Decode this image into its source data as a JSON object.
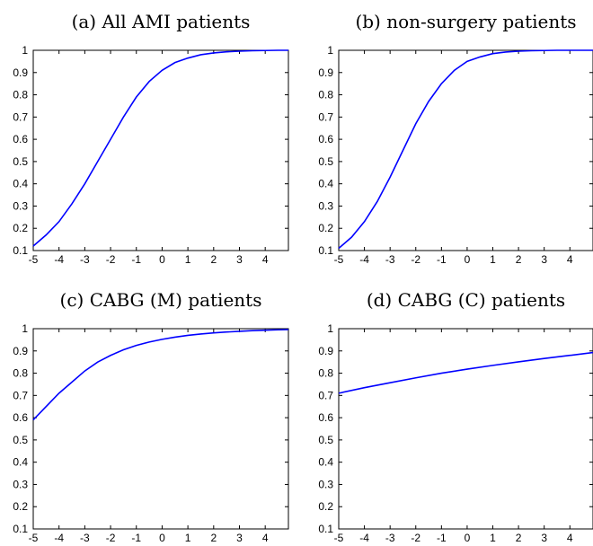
{
  "chart_data": [
    {
      "type": "line",
      "title": "(a) All AMI patients",
      "xlabel": "",
      "ylabel": "",
      "xlim": [
        -5,
        4.9
      ],
      "ylim": [
        0.1,
        1
      ],
      "xticks": [
        -5,
        -4,
        -3,
        -2,
        -1,
        0,
        1,
        2,
        3,
        4
      ],
      "yticks": [
        0.1,
        0.2,
        0.3,
        0.4,
        0.5,
        0.6,
        0.7,
        0.8,
        0.9,
        1
      ],
      "grid": false,
      "color": "#0000ff",
      "series": [
        {
          "x": [
            -5,
            -4.5,
            -4,
            -3.5,
            -3,
            -2.5,
            -2,
            -1.5,
            -1,
            -0.5,
            0,
            0.5,
            1,
            1.5,
            2,
            2.5,
            3,
            3.5,
            4,
            4.5,
            4.9
          ],
          "y": [
            0.12,
            0.17,
            0.23,
            0.31,
            0.4,
            0.5,
            0.6,
            0.7,
            0.79,
            0.86,
            0.91,
            0.945,
            0.965,
            0.98,
            0.988,
            0.993,
            0.996,
            0.998,
            0.999,
            1.0,
            1.0
          ]
        }
      ]
    },
    {
      "type": "line",
      "title": "(b) non-surgery patients",
      "xlabel": "",
      "ylabel": "",
      "xlim": [
        -5,
        4.9
      ],
      "ylim": [
        0.1,
        1
      ],
      "xticks": [
        -5,
        -4,
        -3,
        -2,
        -1,
        0,
        1,
        2,
        3,
        4
      ],
      "yticks": [
        0.1,
        0.2,
        0.3,
        0.4,
        0.5,
        0.6,
        0.7,
        0.8,
        0.9,
        1
      ],
      "grid": false,
      "color": "#0000ff",
      "series": [
        {
          "x": [
            -5,
            -4.5,
            -4,
            -3.5,
            -3,
            -2.5,
            -2,
            -1.5,
            -1,
            -0.5,
            0,
            0.5,
            1,
            1.5,
            2,
            2.5,
            3,
            3.5,
            4,
            4.5,
            4.9
          ],
          "y": [
            0.11,
            0.16,
            0.23,
            0.32,
            0.43,
            0.55,
            0.67,
            0.77,
            0.85,
            0.91,
            0.95,
            0.97,
            0.985,
            0.992,
            0.996,
            0.998,
            0.999,
            1.0,
            1.0,
            1.0,
            1.0
          ]
        }
      ]
    },
    {
      "type": "line",
      "title": "(c) CABG (M) patients",
      "xlabel": "",
      "ylabel": "",
      "xlim": [
        -5,
        4.9
      ],
      "ylim": [
        0.1,
        1
      ],
      "xticks": [
        -5,
        -4,
        -3,
        -2,
        -1,
        0,
        1,
        2,
        3,
        4
      ],
      "yticks": [
        0.1,
        0.2,
        0.3,
        0.4,
        0.5,
        0.6,
        0.7,
        0.8,
        0.9,
        1
      ],
      "grid": false,
      "color": "#0000ff",
      "series": [
        {
          "x": [
            -5,
            -4.5,
            -4,
            -3.5,
            -3,
            -2.5,
            -2,
            -1.5,
            -1,
            -0.5,
            0,
            0.5,
            1,
            1.5,
            2,
            2.5,
            3,
            3.5,
            4,
            4.5,
            4.9
          ],
          "y": [
            0.59,
            0.65,
            0.71,
            0.76,
            0.81,
            0.85,
            0.88,
            0.905,
            0.925,
            0.94,
            0.952,
            0.962,
            0.97,
            0.976,
            0.981,
            0.985,
            0.988,
            0.991,
            0.993,
            0.995,
            0.996
          ]
        }
      ]
    },
    {
      "type": "line",
      "title": "(d) CABG (C) patients",
      "xlabel": "",
      "ylabel": "",
      "xlim": [
        -5,
        4.9
      ],
      "ylim": [
        0.1,
        1
      ],
      "xticks": [
        -5,
        -4,
        -3,
        -2,
        -1,
        0,
        1,
        2,
        3,
        4
      ],
      "yticks": [
        0.1,
        0.2,
        0.3,
        0.4,
        0.5,
        0.6,
        0.7,
        0.8,
        0.9,
        1
      ],
      "grid": false,
      "color": "#0000ff",
      "series": [
        {
          "x": [
            -5,
            -4,
            -3,
            -2,
            -1,
            0,
            1,
            2,
            3,
            4,
            4.9
          ],
          "y": [
            0.71,
            0.735,
            0.757,
            0.779,
            0.8,
            0.818,
            0.835,
            0.851,
            0.866,
            0.88,
            0.893
          ]
        }
      ]
    }
  ]
}
